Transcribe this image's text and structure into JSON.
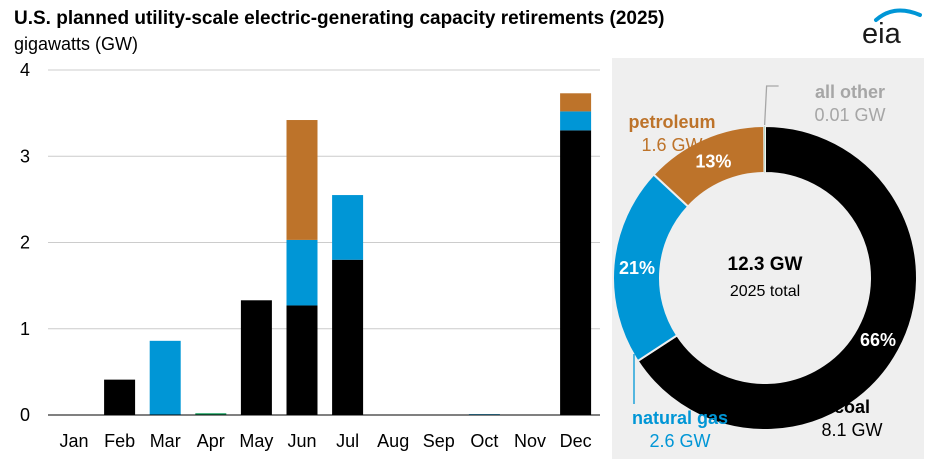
{
  "header": {
    "title": "U.S. planned utility-scale electric-generating capacity retirements (2025)",
    "units": "gigawatts (GW)",
    "logo_text": "eia"
  },
  "colors": {
    "coal": "#000000",
    "natural_gas": "#0096d6",
    "petroleum": "#bd732a",
    "all_other": "#0f9d58",
    "all_other_label": "#a6a6a6",
    "axis": "#000000",
    "grid": "#cccccc",
    "panel_bg": "#efefef"
  },
  "chart_data": [
    {
      "type": "bar",
      "stacked": true,
      "title": "U.S. planned utility-scale electric-generating capacity retirements (2025)",
      "ylabel": "gigawatts (GW)",
      "ylim": [
        0,
        4
      ],
      "yticks": [
        0,
        1,
        2,
        3,
        4
      ],
      "grid": true,
      "categories": [
        "Jan",
        "Feb",
        "Mar",
        "Apr",
        "May",
        "Jun",
        "Jul",
        "Aug",
        "Sep",
        "Oct",
        "Nov",
        "Dec"
      ],
      "series": [
        {
          "key": "coal",
          "values": [
            0,
            0.41,
            0,
            0,
            1.33,
            1.27,
            1.8,
            0,
            0,
            0,
            0,
            3.3
          ]
        },
        {
          "key": "natural_gas",
          "values": [
            0,
            0,
            0.86,
            0,
            0,
            0.76,
            0.75,
            0,
            0,
            0.01,
            0,
            0.22
          ]
        },
        {
          "key": "petroleum",
          "values": [
            0,
            0,
            0,
            0,
            0,
            1.39,
            0,
            0,
            0,
            0,
            0,
            0.21
          ]
        },
        {
          "key": "all_other",
          "values": [
            0,
            0,
            0,
            0.02,
            0,
            0,
            0,
            0,
            0,
            0,
            0,
            0
          ]
        }
      ]
    },
    {
      "type": "pie",
      "donut": true,
      "center_value": "12.3 GW",
      "center_label": "2025 total",
      "slices": [
        {
          "key": "coal",
          "name": "coal",
          "value_label": "8.1 GW",
          "percent": 66,
          "percent_label": "66%",
          "value": 8.1
        },
        {
          "key": "natural_gas",
          "name": "natural gas",
          "value_label": "2.6 GW",
          "percent": 21,
          "percent_label": "21%",
          "value": 2.6
        },
        {
          "key": "petroleum",
          "name": "petroleum",
          "value_label": "1.6 GW",
          "percent": 13,
          "percent_label": "13%",
          "value": 1.6
        },
        {
          "key": "all_other",
          "name": "all other",
          "value_label": "0.01 GW",
          "value": 0.01
        }
      ]
    }
  ]
}
